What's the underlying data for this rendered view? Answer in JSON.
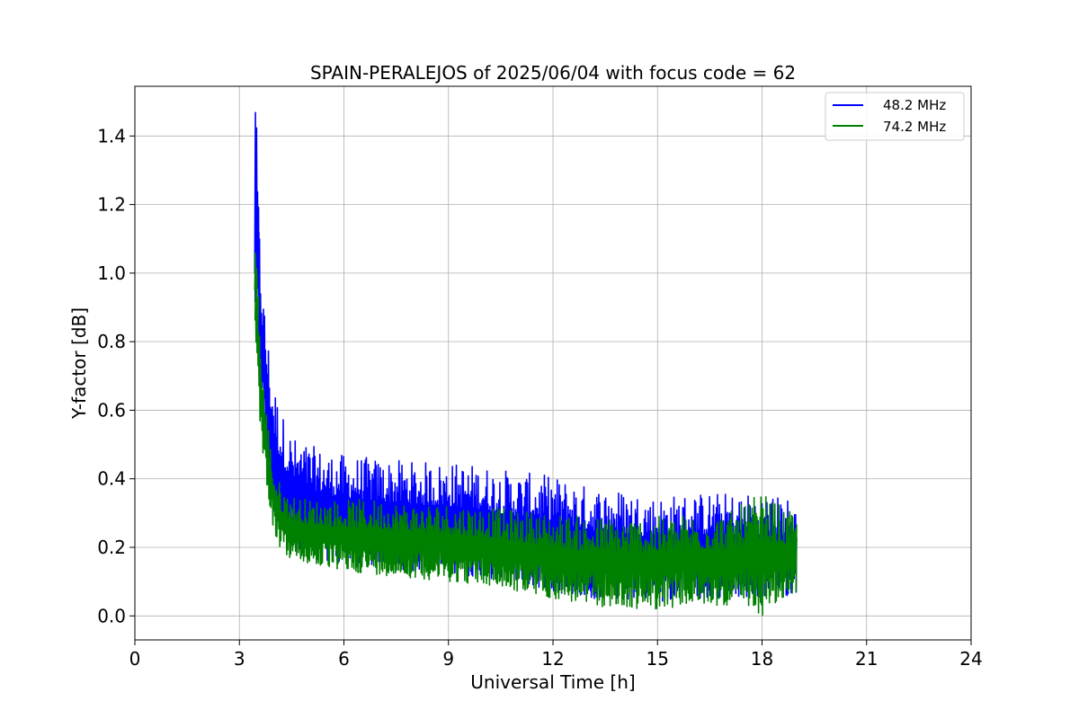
{
  "chart_data": {
    "type": "line",
    "title": "SPAIN-PERALEJOS of 2025/06/04 with focus code = 62",
    "xlabel": "Universal Time [h]",
    "ylabel": "Y-factor [dB]",
    "xlim": [
      0,
      24
    ],
    "ylim": [
      -0.07,
      1.545
    ],
    "xticks": [
      0,
      3,
      6,
      9,
      12,
      15,
      18,
      21,
      24
    ],
    "yticks": [
      0.0,
      0.2,
      0.4,
      0.6,
      0.8,
      1.0,
      1.2,
      1.4
    ],
    "xtick_labels": [
      "0",
      "3",
      "6",
      "9",
      "12",
      "15",
      "18",
      "21",
      "24"
    ],
    "ytick_labels": [
      "0.0",
      "0.2",
      "0.4",
      "0.6",
      "0.8",
      "1.0",
      "1.2",
      "1.4"
    ],
    "grid": true,
    "legend_position": "top-right",
    "series": [
      {
        "name": "48.2 MHz",
        "color": "#0000ff",
        "x": [
          3.45,
          3.48,
          3.55,
          3.6,
          3.7,
          3.8,
          3.9,
          4.0,
          4.2,
          4.4,
          4.6,
          5.0,
          5.5,
          6.0,
          7.0,
          8.0,
          9.0,
          10.0,
          11.0,
          12.0,
          13.0,
          14.0,
          15.0,
          16.0,
          17.0,
          18.0,
          19.0
        ],
        "upper": [
          1.05,
          1.47,
          1.22,
          1.08,
          0.93,
          0.83,
          0.75,
          0.68,
          0.6,
          0.55,
          0.52,
          0.5,
          0.48,
          0.47,
          0.46,
          0.45,
          0.45,
          0.44,
          0.42,
          0.41,
          0.38,
          0.37,
          0.35,
          0.36,
          0.36,
          0.36,
          0.34
        ],
        "lower": [
          0.9,
          0.95,
          0.8,
          0.68,
          0.55,
          0.45,
          0.35,
          0.27,
          0.22,
          0.2,
          0.18,
          0.17,
          0.16,
          0.15,
          0.14,
          0.13,
          0.12,
          0.11,
          0.09,
          0.07,
          0.05,
          0.04,
          0.04,
          0.05,
          0.05,
          0.05,
          0.06
        ]
      },
      {
        "name": "74.2 MHz",
        "color": "#008000",
        "x": [
          3.45,
          3.48,
          3.55,
          3.6,
          3.7,
          3.8,
          3.9,
          4.0,
          4.2,
          4.4,
          4.6,
          5.0,
          5.5,
          6.0,
          7.0,
          8.0,
          9.0,
          10.0,
          11.0,
          12.0,
          13.0,
          14.0,
          15.0,
          16.0,
          17.0,
          18.0,
          19.0
        ],
        "upper": [
          0.95,
          1.06,
          0.93,
          0.82,
          0.68,
          0.58,
          0.5,
          0.43,
          0.38,
          0.36,
          0.35,
          0.34,
          0.34,
          0.34,
          0.34,
          0.33,
          0.33,
          0.32,
          0.31,
          0.3,
          0.29,
          0.29,
          0.29,
          0.3,
          0.3,
          0.36,
          0.29
        ],
        "lower": [
          0.85,
          0.78,
          0.65,
          0.55,
          0.45,
          0.37,
          0.3,
          0.24,
          0.19,
          0.17,
          0.16,
          0.15,
          0.14,
          0.13,
          0.12,
          0.11,
          0.1,
          0.09,
          0.07,
          0.05,
          0.03,
          0.02,
          0.02,
          0.03,
          0.03,
          0.0,
          0.07
        ]
      }
    ]
  }
}
